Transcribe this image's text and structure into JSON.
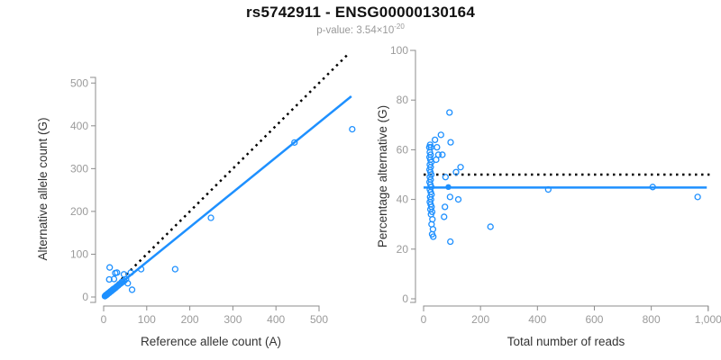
{
  "header": {
    "title": "rs5742911 - ENSG00000130164",
    "subtitle_prefix": "p-value: 3.54×10",
    "subtitle_exponent": "-20"
  },
  "colors": {
    "accent_blue": "#1E90FF",
    "identity_black": "#000000",
    "axis_line": "#8c8c8c",
    "tick_label": "#9a9a9a",
    "axis_title": "#333333"
  },
  "chart_data": [
    {
      "id": "allele-count-scatter",
      "type": "scatter",
      "xlabel": "Reference allele count (A)",
      "ylabel": "Alternative allele count (G)",
      "xlim": [
        0,
        580
      ],
      "ylim": [
        0,
        570
      ],
      "grid": false,
      "legend": "none",
      "xticks": [
        0,
        100,
        200,
        300,
        400,
        500
      ],
      "xtick_labels": [
        "0",
        "100",
        "200",
        "300",
        "400",
        "500"
      ],
      "yticks": [
        0,
        100,
        200,
        300,
        400,
        500
      ],
      "ytick_labels": [
        "0",
        "100",
        "200",
        "300",
        "400",
        "500"
      ],
      "lines": [
        {
          "name": "identity-line",
          "dashed": true,
          "color": "#000000",
          "x1": 0,
          "y1": 0,
          "x2": 567,
          "y2": 567
        },
        {
          "name": "fit-line",
          "dashed": false,
          "color": "#1E90FF",
          "x1": 0,
          "y1": 0,
          "x2": 575,
          "y2": 469
        }
      ],
      "points": [
        [
          3,
          2
        ],
        [
          4,
          3
        ],
        [
          5,
          4
        ],
        [
          6,
          5
        ],
        [
          7,
          5
        ],
        [
          8,
          6
        ],
        [
          9,
          7
        ],
        [
          10,
          8
        ],
        [
          11,
          9
        ],
        [
          12,
          9
        ],
        [
          13,
          10
        ],
        [
          14,
          11
        ],
        [
          15,
          12
        ],
        [
          16,
          13
        ],
        [
          17,
          13
        ],
        [
          18,
          14
        ],
        [
          19,
          15
        ],
        [
          20,
          16
        ],
        [
          21,
          17
        ],
        [
          22,
          18
        ],
        [
          23,
          18
        ],
        [
          24,
          19
        ],
        [
          25,
          20
        ],
        [
          27,
          21
        ],
        [
          29,
          23
        ],
        [
          31,
          25
        ],
        [
          34,
          27
        ],
        [
          37,
          30
        ],
        [
          40,
          32
        ],
        [
          44,
          35
        ],
        [
          48,
          38
        ],
        [
          52,
          42
        ],
        [
          13,
          41
        ],
        [
          24,
          42
        ],
        [
          14,
          69
        ],
        [
          27,
          56
        ],
        [
          31,
          57
        ],
        [
          42,
          35
        ],
        [
          47,
          53
        ],
        [
          56,
          32
        ],
        [
          63,
          57
        ],
        [
          66,
          17
        ],
        [
          87,
          65
        ],
        [
          166,
          65
        ],
        [
          249,
          185
        ],
        [
          443,
          361
        ],
        [
          577,
          392
        ]
      ],
      "filled_points": []
    },
    {
      "id": "percentage-vs-reads-scatter",
      "type": "scatter",
      "xlabel": "Total number of reads",
      "ylabel": "Percentage alternative (G)",
      "xlim": [
        0,
        1010
      ],
      "ylim": [
        0,
        100
      ],
      "grid": false,
      "legend": "none",
      "xticks": [
        0,
        200,
        400,
        600,
        800,
        1000
      ],
      "xtick_labels": [
        "0",
        "200",
        "400",
        "600",
        "800",
        "1,000"
      ],
      "yticks": [
        0,
        20,
        40,
        60,
        80,
        100
      ],
      "ytick_labels": [
        "0",
        "20",
        "40",
        "60",
        "80",
        "100"
      ],
      "lines": [
        {
          "name": "expected-50pct-line",
          "dashed": true,
          "color": "#000000",
          "x1": 0,
          "y1": 50,
          "x2": 1005,
          "y2": 50
        },
        {
          "name": "fit-line",
          "dashed": false,
          "color": "#1E90FF",
          "x1": 0,
          "y1": 44.8,
          "x2": 995,
          "y2": 44.8
        }
      ],
      "points": [
        [
          20,
          61
        ],
        [
          23,
          62
        ],
        [
          26,
          61
        ],
        [
          22,
          59
        ],
        [
          25,
          58
        ],
        [
          21,
          57
        ],
        [
          24,
          56
        ],
        [
          27,
          55
        ],
        [
          22,
          54
        ],
        [
          25,
          53
        ],
        [
          21,
          52
        ],
        [
          24,
          51
        ],
        [
          27,
          50
        ],
        [
          22,
          49
        ],
        [
          25,
          48
        ],
        [
          21,
          47
        ],
        [
          24,
          46
        ],
        [
          27,
          45
        ],
        [
          22,
          44
        ],
        [
          25,
          43
        ],
        [
          28,
          42
        ],
        [
          23,
          41
        ],
        [
          26,
          40
        ],
        [
          22,
          39
        ],
        [
          25,
          38
        ],
        [
          28,
          37
        ],
        [
          24,
          36
        ],
        [
          30,
          35
        ],
        [
          26,
          34
        ],
        [
          31,
          32
        ],
        [
          28,
          30
        ],
        [
          33,
          28
        ],
        [
          30,
          26
        ],
        [
          34,
          25
        ],
        [
          40,
          64
        ],
        [
          44,
          56
        ],
        [
          47,
          61
        ],
        [
          52,
          58
        ],
        [
          61,
          66
        ],
        [
          66,
          58
        ],
        [
          91,
          75
        ],
        [
          95,
          63
        ],
        [
          77,
          49
        ],
        [
          93,
          41
        ],
        [
          114,
          51
        ],
        [
          122,
          40
        ],
        [
          130,
          53
        ],
        [
          75,
          37
        ],
        [
          72,
          33
        ],
        [
          94,
          23
        ],
        [
          235,
          29
        ],
        [
          438,
          44
        ],
        [
          805,
          45
        ],
        [
          963,
          41
        ]
      ],
      "filled_points": [
        [
          87,
          45
        ]
      ]
    }
  ]
}
